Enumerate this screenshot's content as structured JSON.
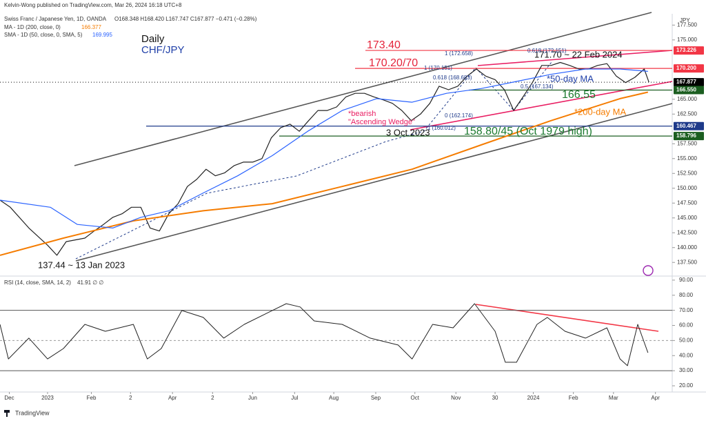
{
  "chart_data": {
    "type": "line",
    "header": "Kelvin-Wong published on TradingView.com, Mar 26, 2024 16:18 UTC+8",
    "title": "Daily",
    "subtitle": "CHF/JPY",
    "price_axis_label": "JPY",
    "ohlc": "O168.348 H168.420 L167.747 C167.877 −0.471 (−0.28%)",
    "xlim": [
      -1.1,
      71
    ],
    "xticks": [
      {
        "value": -0.1,
        "label": "Dec"
      },
      {
        "value": 4,
        "label": "2023"
      },
      {
        "value": 8.7,
        "label": "Feb"
      },
      {
        "value": 12.9,
        "label": "2"
      },
      {
        "value": 17.4,
        "label": "Apr"
      },
      {
        "value": 21.7,
        "label": "2"
      },
      {
        "value": 26,
        "label": "Jun"
      },
      {
        "value": 30.5,
        "label": "Jul"
      },
      {
        "value": 34.7,
        "label": "Aug"
      },
      {
        "value": 39.2,
        "label": "Sep"
      },
      {
        "value": 43.4,
        "label": "Oct"
      },
      {
        "value": 47.8,
        "label": "Nov"
      },
      {
        "value": 52,
        "label": "30"
      },
      {
        "value": 56.1,
        "label": "2024"
      },
      {
        "value": 60.4,
        "label": "Feb"
      },
      {
        "value": 64.7,
        "label": "Mar"
      },
      {
        "value": 69.2,
        "label": "Apr"
      }
    ],
    "ylim": [
      135.2,
      179.4
    ],
    "yticks": [
      {
        "value": 137.5,
        "label": "137.500"
      },
      {
        "value": 140,
        "label": "140.000"
      },
      {
        "value": 142.5,
        "label": "142.500"
      },
      {
        "value": 145,
        "label": "145.000"
      },
      {
        "value": 147.5,
        "label": "147.500"
      },
      {
        "value": 150,
        "label": "150.000"
      },
      {
        "value": 152.5,
        "label": "152.500"
      },
      {
        "value": 155,
        "label": "155.000"
      },
      {
        "value": 157.5,
        "label": "157.500"
      },
      {
        "value": 162.5,
        "label": "162.500"
      },
      {
        "value": 165,
        "label": "165.000"
      },
      {
        "value": 175,
        "label": "175.000"
      },
      {
        "value": 177.5,
        "label": "177.500"
      }
    ],
    "series": [
      {
        "name": "Swiss Franc / Japanese Yen, 1D, OANDA",
        "color": "#222222",
        "x": [
          -1.1,
          0,
          2,
          4,
          5,
          6,
          8,
          9,
          10,
          11,
          12,
          13,
          14,
          15,
          16,
          17,
          18,
          19,
          20,
          21,
          22,
          23,
          24,
          25,
          26,
          27,
          28,
          29,
          30,
          31,
          32,
          33,
          34,
          35,
          36,
          37,
          38,
          39,
          40,
          41,
          42,
          43,
          44,
          45,
          46,
          47,
          48,
          49,
          50,
          51,
          52,
          53,
          54,
          55,
          56,
          57,
          58,
          59,
          60,
          61,
          62,
          63,
          64,
          65,
          66,
          67,
          68,
          68.5
        ],
        "values": [
          148,
          146.8,
          143.3,
          140.4,
          138.7,
          141,
          141.6,
          142.8,
          143.9,
          145.1,
          145.7,
          146.8,
          146.8,
          143.3,
          142.8,
          145.7,
          147.4,
          150.3,
          151.5,
          153.2,
          152.1,
          152.6,
          153.8,
          154.4,
          154.4,
          155,
          158.5,
          160.2,
          160.8,
          159.6,
          161.4,
          163.1,
          163.1,
          163.7,
          165.4,
          166,
          166,
          165.4,
          164.9,
          164.3,
          163.1,
          161.4,
          162.5,
          164.3,
          167.2,
          166.6,
          167.2,
          168.9,
          170.1,
          168.9,
          168.3,
          166.6,
          163.1,
          165.4,
          167.8,
          170.7,
          170.7,
          171.2,
          170.7,
          170.1,
          170.1,
          170.7,
          171,
          168.9,
          167.8,
          168.7,
          170.1,
          167.877
        ]
      },
      {
        "name": "MA - 1D (200, close, 0)",
        "last": "166.377",
        "color": "#f57c00",
        "x": [
          -1.1,
          5.7,
          13.2,
          20.7,
          28.1,
          35.6,
          43.1,
          50.5,
          58,
          65.4,
          68.4
        ],
        "values": [
          138.7,
          141.6,
          144.5,
          146.2,
          147.4,
          150.3,
          153.2,
          157.3,
          161.4,
          165.1,
          166.2
        ]
      },
      {
        "name": "SMA - 1D (50, close, 0, SMA, 5)",
        "last": "169.995",
        "color": "#2962ff",
        "x": [
          -1.1,
          4.3,
          7.2,
          11,
          14,
          17,
          20.7,
          24.4,
          28.1,
          31.9,
          35.6,
          39.3,
          43.1,
          46.8,
          50.5,
          54.3,
          58,
          61.7,
          65.4,
          68.4
        ],
        "values": [
          148,
          146.8,
          143.9,
          143.3,
          145.1,
          146.2,
          149.2,
          152.1,
          155.5,
          159.6,
          163.1,
          165.1,
          164.5,
          166,
          166.8,
          168,
          169.2,
          170.1,
          170.1,
          169.7
        ]
      }
    ],
    "badges": [
      {
        "value": 173.226,
        "label": "173.226",
        "color": "#f23645"
      },
      {
        "value": 170.2,
        "label": "170.200",
        "color": "#f23645"
      },
      {
        "value": 167.877,
        "label": "167.877",
        "color": "#000000"
      },
      {
        "value": 166.55,
        "label": "166.550",
        "color": "#1b5e20"
      },
      {
        "value": 160.467,
        "label": "160.467",
        "color": "#1e3a8a"
      },
      {
        "value": 158.796,
        "label": "158.796",
        "color": "#1b5e20"
      }
    ],
    "annotations": [
      {
        "text": "173.40",
        "color": "#e5243b"
      },
      {
        "text": "170.20/70",
        "color": "#e5243b"
      },
      {
        "text": "171.70 ~ 22 Feb 2024",
        "color": "#111111"
      },
      {
        "text": "*50-day MA",
        "color": "#1f3fa8"
      },
      {
        "text": "166.55",
        "color": "#1b7a2e"
      },
      {
        "text": "*200-day MA",
        "color": "#f57c00"
      },
      {
        "text": "*bearish",
        "color": "#e91e63"
      },
      {
        "text": "\"Ascending Wedge\"",
        "color": "#e91e63"
      },
      {
        "text": "3 Oct 2023",
        "color": "#111111"
      },
      {
        "text": "158.80/45 (Oct 1979 high)",
        "color": "#1b7a2e"
      },
      {
        "text": "137.44 ~ 13 Jan 2023",
        "color": "#111111"
      },
      {
        "text": "1 (172.658)",
        "color": "#1e3a8a"
      },
      {
        "text": "0.618 (172.151)",
        "color": "#1e3a8a"
      },
      {
        "text": "1 (170.151)",
        "color": "#1e3a8a"
      },
      {
        "text": "0.618 (168.683)",
        "color": "#1e3a8a"
      },
      {
        "text": "0.5 (167.134)",
        "color": "#1e3a8a"
      },
      {
        "text": "0 (162.174)",
        "color": "#1e3a8a"
      },
      {
        "text": "1 (160.012)",
        "color": "#1e3a8a"
      }
    ],
    "rsi": {
      "name": "RSI (14, close, SMA, 14, 2)",
      "last": "41.91 ∅ ∅",
      "color": "#222222",
      "ylim": [
        16.8,
        92.7
      ],
      "yticks": [
        {
          "value": 20,
          "label": "20.00"
        },
        {
          "value": 30,
          "label": "30.00"
        },
        {
          "value": 40,
          "label": "40.00"
        },
        {
          "value": 50,
          "label": "50.00"
        },
        {
          "value": 60,
          "label": "60.00"
        },
        {
          "value": 70,
          "label": "70.00"
        },
        {
          "value": 80,
          "label": "80.00"
        },
        {
          "value": 90,
          "label": "90.00"
        }
      ],
      "bands": [
        70,
        50,
        30
      ],
      "x": [
        -1.1,
        -0.2,
        2,
        4,
        5.7,
        8,
        10.2,
        13.2,
        14.7,
        16.2,
        18.4,
        20.7,
        22.9,
        25.1,
        28.1,
        29.6,
        31.1,
        32.6,
        35.6,
        38.6,
        41.6,
        43.1,
        45.3,
        47.5,
        49.8,
        52,
        53.1,
        54.3,
        56.5,
        57.6,
        59.5,
        61.7,
        64,
        65.4,
        66.2,
        67.3,
        68.4
      ],
      "values": [
        60.7,
        37.8,
        51.6,
        37.8,
        44.7,
        60.7,
        56.1,
        60.7,
        37.8,
        44.7,
        69.9,
        65.3,
        51.6,
        60.7,
        69.9,
        74.4,
        72.2,
        63,
        60.7,
        51.6,
        47,
        37.8,
        60.7,
        58.4,
        74.4,
        56.1,
        35.6,
        35.6,
        60.7,
        65.3,
        56.1,
        51.6,
        58.4,
        37.8,
        33.3,
        60.7,
        41.91
      ]
    },
    "footer": "TradingView"
  }
}
